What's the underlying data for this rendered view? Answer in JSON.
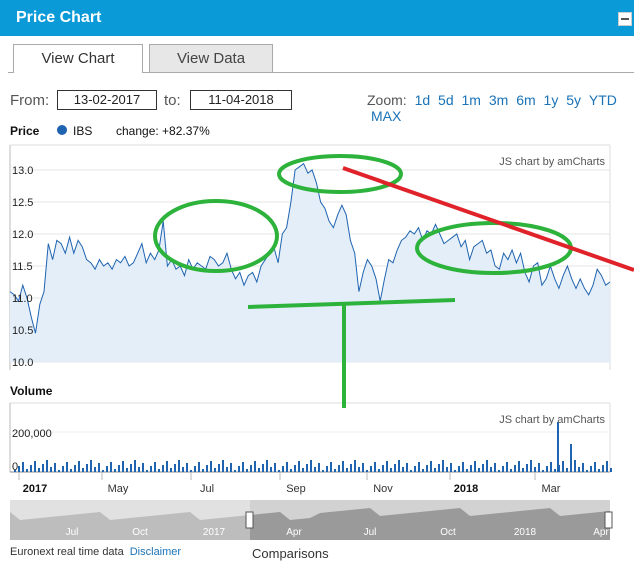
{
  "header": {
    "title": "Price Chart"
  },
  "tabs": [
    {
      "label": "View Chart"
    },
    {
      "label": "View Data"
    }
  ],
  "range": {
    "from_label": "From:",
    "from": "13-02-2017",
    "to_label": "to:",
    "to": "11-04-2018"
  },
  "zoom": {
    "label": "Zoom:",
    "options": [
      "1d",
      "5d",
      "1m",
      "3m",
      "6m",
      "1y",
      "5y",
      "YTD",
      "MAX"
    ]
  },
  "legend": {
    "price_label": "Price",
    "series": "IBS",
    "change": "change: +82.37%"
  },
  "credit": "JS chart by amCharts",
  "volume_label": "Volume",
  "footer": {
    "text": "Euronext real time data",
    "disclaimer": "Disclaimer",
    "comparisons": "Comparisons"
  },
  "colors": {
    "accent": "#0a9ad7",
    "series": "#1f64b0",
    "annotation_green": "#2db33b",
    "annotation_red": "#e0232a"
  },
  "chart_data": {
    "type": "line",
    "title": "",
    "y_ticks": [
      "13.0",
      "12.5",
      "12.0",
      "11.5",
      "11.0",
      "10.5",
      "10.0"
    ],
    "ylim": [
      10.0,
      13.0
    ],
    "x_ticks": [
      "2017",
      "May",
      "Jul",
      "Sep",
      "Nov",
      "2018",
      "Mar"
    ],
    "x_ticks_bold": [
      "2017",
      "2018"
    ],
    "series": [
      {
        "x": [
          0,
          3,
          6,
          9,
          12,
          15,
          18,
          21,
          24,
          27,
          30,
          33,
          36,
          39,
          42,
          45,
          48,
          51,
          54,
          57,
          60,
          63,
          66,
          69,
          72,
          75,
          78,
          81,
          84,
          87,
          90,
          93,
          96,
          99,
          102,
          105,
          108,
          111,
          114,
          117,
          120,
          123,
          126,
          129,
          132,
          135,
          138,
          141,
          144,
          147,
          150,
          153,
          156,
          159,
          162,
          165,
          168,
          171,
          174,
          177,
          180,
          183,
          186,
          189,
          192,
          195,
          198,
          201,
          204,
          207,
          210,
          213,
          216,
          219,
          222,
          225,
          228,
          231,
          234,
          237,
          240,
          243,
          246,
          249,
          252,
          255,
          258,
          261,
          264,
          267,
          270,
          273,
          276,
          279,
          282,
          285,
          288,
          291,
          294,
          297,
          300,
          303,
          306,
          309,
          312,
          315,
          318,
          321,
          324,
          327,
          330,
          333,
          336,
          339,
          342,
          345,
          348,
          351,
          354,
          357,
          360,
          363,
          366,
          369,
          372,
          375,
          378,
          381,
          384,
          387,
          390,
          393,
          396,
          399,
          402,
          405,
          408,
          411,
          414,
          417,
          420,
          423
        ],
        "y": [
          11.1,
          11.05,
          10.95,
          11.2,
          11.0,
          10.7,
          10.45,
          10.9,
          11.1,
          11.85,
          11.6,
          11.9,
          11.85,
          11.7,
          11.95,
          11.7,
          11.9,
          11.8,
          11.6,
          11.55,
          11.45,
          11.6,
          11.5,
          11.55,
          11.45,
          11.6,
          11.55,
          11.65,
          11.5,
          11.55,
          11.7,
          11.85,
          11.55,
          11.7,
          11.6,
          11.75,
          12.2,
          11.5,
          11.6,
          11.45,
          11.5,
          11.35,
          11.6,
          11.45,
          11.55,
          11.5,
          11.45,
          11.65,
          11.6,
          11.5,
          11.55,
          11.7,
          11.45,
          11.3,
          11.4,
          11.2,
          11.35,
          11.4,
          11.25,
          11.5,
          11.6,
          11.7,
          11.8,
          11.55,
          12.0,
          12.1,
          12.5,
          13.0,
          13.05,
          13.1,
          12.95,
          13.0,
          12.8,
          12.5,
          12.4,
          12.2,
          12.1,
          12.3,
          12.45,
          12.3,
          11.9,
          11.7,
          11.1,
          11.4,
          11.6,
          11.5,
          11.3,
          10.95,
          11.3,
          11.6,
          11.55,
          11.75,
          11.9,
          11.95,
          12.05,
          12.0,
          12.1,
          11.9,
          12.05,
          12.0,
          12.15,
          12.0,
          11.85,
          11.9,
          11.95,
          12.0,
          11.8,
          11.9,
          11.6,
          11.8,
          11.85,
          11.9,
          11.7,
          11.75,
          11.5,
          11.45,
          11.7,
          11.6,
          11.75,
          11.55,
          11.7,
          11.4,
          11.25,
          11.5,
          11.55,
          11.2,
          11.3,
          11.5,
          11.3,
          11.15,
          11.35,
          11.5,
          11.3,
          11.15,
          11.3,
          11.15,
          11.05,
          11.2,
          11.45,
          11.35,
          11.2,
          11.25
        ]
      }
    ],
    "volume_ticks": [
      "200,000",
      "0"
    ],
    "navigator_labels": [
      "Jul",
      "Oct",
      "2017",
      "Apr",
      "Jul",
      "Oct",
      "2018",
      "Apr"
    ]
  }
}
